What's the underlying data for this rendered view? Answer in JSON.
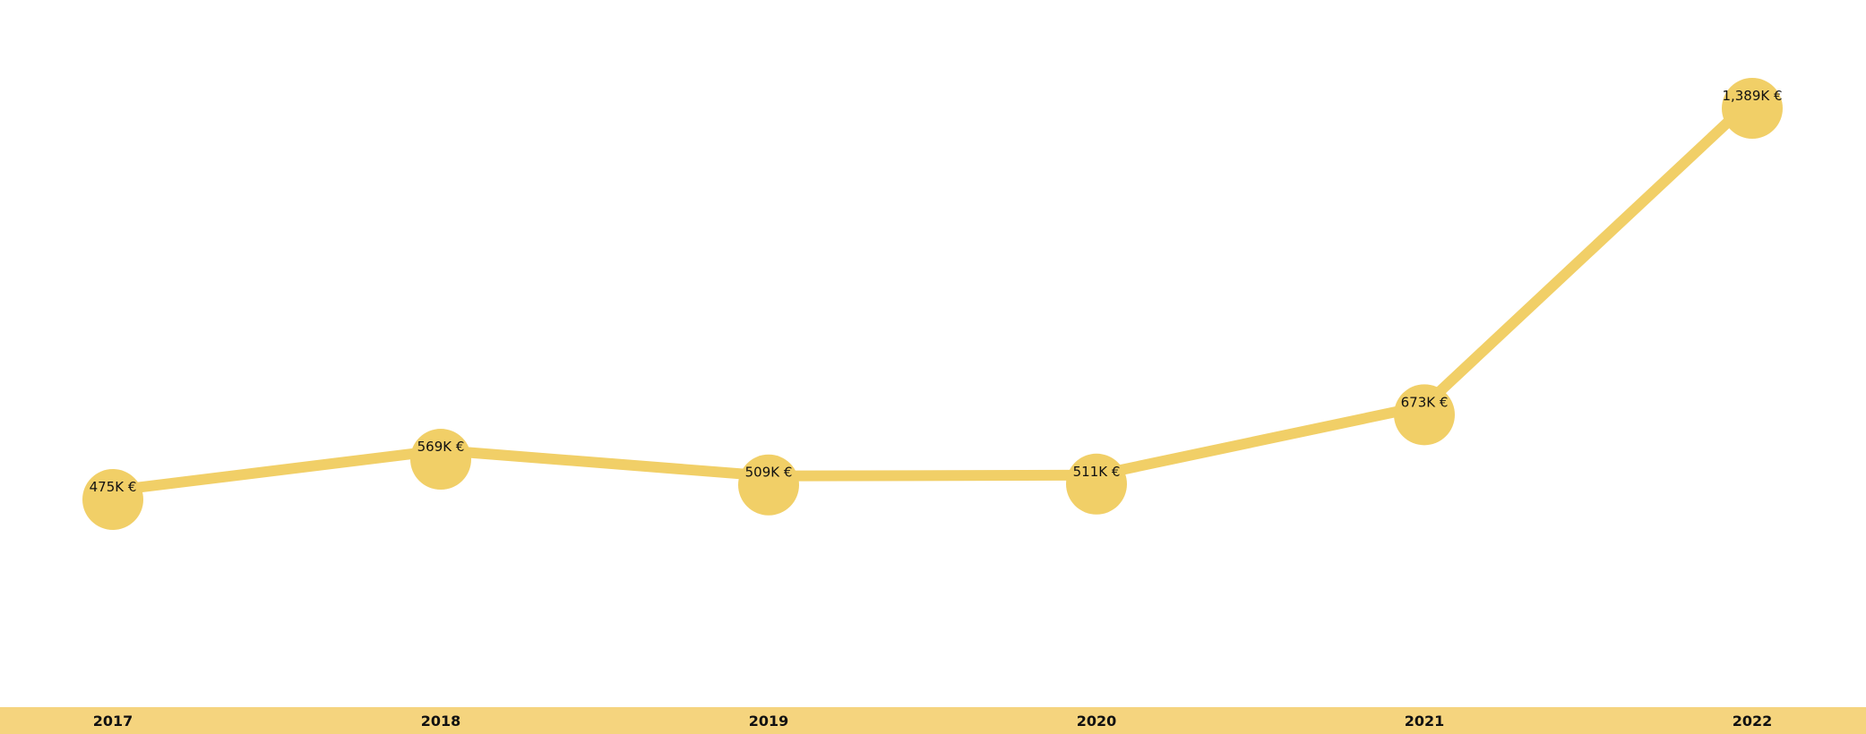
{
  "chart_data": {
    "type": "line",
    "title": "",
    "xlabel": "",
    "ylabel": "",
    "categories": [
      "2017",
      "2018",
      "2019",
      "2020",
      "2021",
      "2022"
    ],
    "series": [
      {
        "values": [
          475,
          569,
          509,
          511,
          673,
          1389
        ],
        "data_labels": [
          "475K €",
          "569K €",
          "509K €",
          "511K €",
          "673K €",
          "1,389K €"
        ]
      }
    ],
    "grid": false,
    "legend": "none",
    "colors": {
      "line": "#f1cf67",
      "marker": "#f1cf67",
      "axis_band": "#f5d47e"
    }
  }
}
